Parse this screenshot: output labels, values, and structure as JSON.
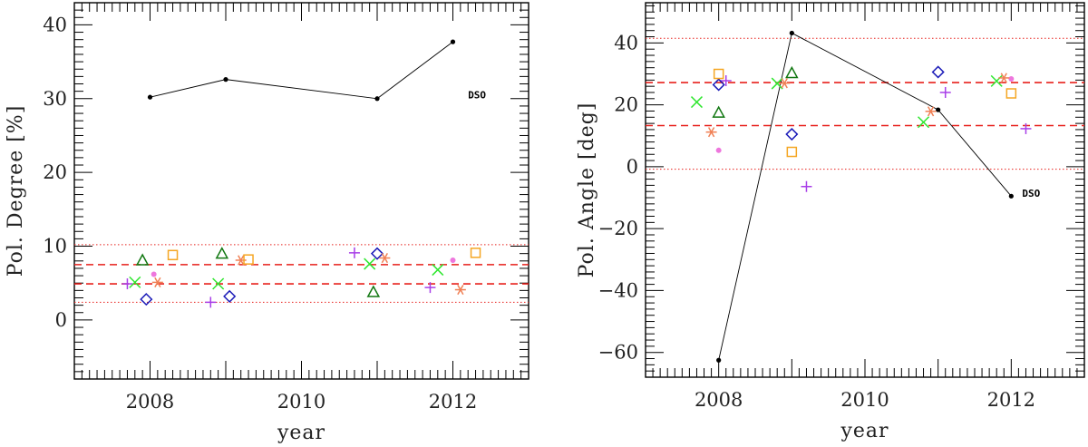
{
  "chart_data": [
    {
      "type": "scatter",
      "xlabel": "year",
      "ylabel": "Pol. Degree [%]",
      "xlim": [
        2007.0,
        2013.0
      ],
      "ylim": [
        -8,
        43
      ],
      "xticks": [
        2008,
        2010,
        2012
      ],
      "yticks": [
        0,
        10,
        20,
        30,
        40
      ],
      "x_minor_step": 0.1,
      "y_minor_step": 1,
      "annotation": {
        "text": "DSO",
        "x": 2012.2,
        "y": 30.5
      },
      "reference_lines": {
        "dashed": {
          "color": "#e8201c",
          "values": [
            7.5,
            4.9
          ]
        },
        "dotted": {
          "color": "#e8201c",
          "values": [
            10.2,
            2.4
          ]
        }
      },
      "series": [
        {
          "marker": "dot_line",
          "color": "#000000",
          "points": [
            [
              2008.0,
              30.2
            ],
            [
              2009.0,
              32.6
            ],
            [
              2011.0,
              30.0
            ],
            [
              2012.0,
              37.7
            ]
          ]
        },
        {
          "marker": "plus",
          "color": "#a83ee8",
          "points": [
            [
              2007.7,
              4.9
            ],
            [
              2008.8,
              2.4
            ],
            [
              2010.7,
              9.1
            ],
            [
              2011.7,
              4.4
            ]
          ]
        },
        {
          "marker": "cross",
          "color": "#2ee62e",
          "points": [
            [
              2007.8,
              5.1
            ],
            [
              2008.9,
              4.9
            ],
            [
              2010.9,
              7.6
            ],
            [
              2011.8,
              6.8
            ]
          ]
        },
        {
          "marker": "triangle",
          "color": "#117711",
          "points": [
            [
              2007.9,
              8.1
            ],
            [
              2008.95,
              9.0
            ],
            [
              2010.95,
              3.8
            ]
          ]
        },
        {
          "marker": "diamond",
          "color": "#1a1ab8",
          "points": [
            [
              2007.95,
              2.8
            ],
            [
              2009.05,
              3.2
            ],
            [
              2011.0,
              9.0
            ]
          ]
        },
        {
          "marker": "dot",
          "color": "#ee77dd",
          "points": [
            [
              2008.05,
              6.2
            ],
            [
              2012.0,
              8.1
            ]
          ]
        },
        {
          "marker": "asterisk",
          "color": "#f08055",
          "points": [
            [
              2008.1,
              5.1
            ],
            [
              2009.2,
              8.1
            ],
            [
              2011.1,
              8.4
            ],
            [
              2012.1,
              4.1
            ]
          ]
        },
        {
          "marker": "square",
          "color": "#f5a623",
          "points": [
            [
              2008.3,
              8.8
            ],
            [
              2009.3,
              8.2
            ],
            [
              2012.3,
              9.1
            ]
          ]
        }
      ]
    },
    {
      "type": "scatter",
      "xlabel": "year",
      "ylabel": "Pol. Angle [deg]",
      "xlim": [
        2007.0,
        2013.0
      ],
      "ylim": [
        -68,
        53
      ],
      "xticks": [
        2008,
        2010,
        2012
      ],
      "yticks": [
        -60,
        -40,
        -20,
        0,
        20,
        40
      ],
      "x_minor_step": 0.1,
      "y_minor_step": 2,
      "annotation": {
        "text": "DSO",
        "x": 2012.15,
        "y": -8.5
      },
      "reference_lines": {
        "dashed": {
          "color": "#e8201c",
          "values": [
            27.2,
            13.3
          ]
        },
        "dotted": {
          "color": "#e8201c",
          "values": [
            41.5,
            -0.8
          ]
        }
      },
      "series": [
        {
          "marker": "dot_line",
          "color": "#000000",
          "points": [
            [
              2008.0,
              -62.5
            ],
            [
              2009.0,
              43.2
            ],
            [
              2011.0,
              18.4
            ],
            [
              2012.0,
              -9.5
            ]
          ]
        },
        {
          "marker": "plus",
          "color": "#a83ee8",
          "points": [
            [
              2008.1,
              27.8
            ],
            [
              2009.2,
              -6.4
            ],
            [
              2011.1,
              24.0
            ],
            [
              2012.2,
              12.3
            ]
          ]
        },
        {
          "marker": "cross",
          "color": "#2ee62e",
          "points": [
            [
              2007.7,
              20.9
            ],
            [
              2008.8,
              26.9
            ],
            [
              2010.8,
              14.4
            ],
            [
              2011.8,
              27.7
            ]
          ]
        },
        {
          "marker": "triangle",
          "color": "#117711",
          "points": [
            [
              2008.0,
              17.5
            ],
            [
              2009.0,
              30.3
            ]
          ]
        },
        {
          "marker": "diamond",
          "color": "#1a1ab8",
          "points": [
            [
              2008.0,
              26.5
            ],
            [
              2009.0,
              10.5
            ],
            [
              2011.0,
              30.6
            ]
          ]
        },
        {
          "marker": "dot",
          "color": "#ee77dd",
          "points": [
            [
              2008.0,
              5.3
            ],
            [
              2012.0,
              28.4
            ]
          ]
        },
        {
          "marker": "asterisk",
          "color": "#f08055",
          "points": [
            [
              2007.9,
              11.2
            ],
            [
              2008.9,
              27.0
            ],
            [
              2010.9,
              17.9
            ],
            [
              2011.9,
              28.7
            ]
          ]
        },
        {
          "marker": "square",
          "color": "#f5a623",
          "points": [
            [
              2008.0,
              30.0
            ],
            [
              2009.0,
              4.8
            ],
            [
              2012.0,
              23.7
            ]
          ]
        }
      ]
    }
  ]
}
